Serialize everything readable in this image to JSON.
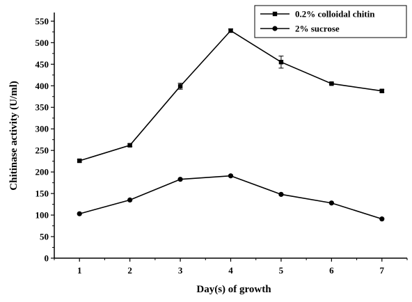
{
  "chart_data": {
    "type": "line",
    "title": "",
    "xlabel": "Day(s) of growth",
    "ylabel": "Chitinase activity (U/ml)",
    "x": [
      1,
      2,
      3,
      4,
      5,
      6,
      7
    ],
    "xlim": [
      0.5,
      7.5
    ],
    "ylim": [
      0,
      570
    ],
    "x_ticks": [
      1,
      2,
      3,
      4,
      5,
      6,
      7
    ],
    "y_ticks": [
      0,
      50,
      100,
      150,
      200,
      250,
      300,
      350,
      400,
      450,
      500,
      550
    ],
    "grid": false,
    "legend_position": "top-right",
    "series": [
      {
        "name": "0.2% colloidal chitin",
        "marker": "square",
        "values": [
          226,
          262,
          399,
          528,
          455,
          405,
          388
        ],
        "errors": [
          3,
          3,
          7,
          4,
          14,
          2,
          3
        ],
        "color": "#000000"
      },
      {
        "name": "2% sucrose",
        "marker": "circle",
        "values": [
          103,
          135,
          183,
          191,
          148,
          128,
          91
        ],
        "errors": [
          0,
          0,
          0,
          0,
          0,
          0,
          0
        ],
        "color": "#000000"
      }
    ]
  }
}
